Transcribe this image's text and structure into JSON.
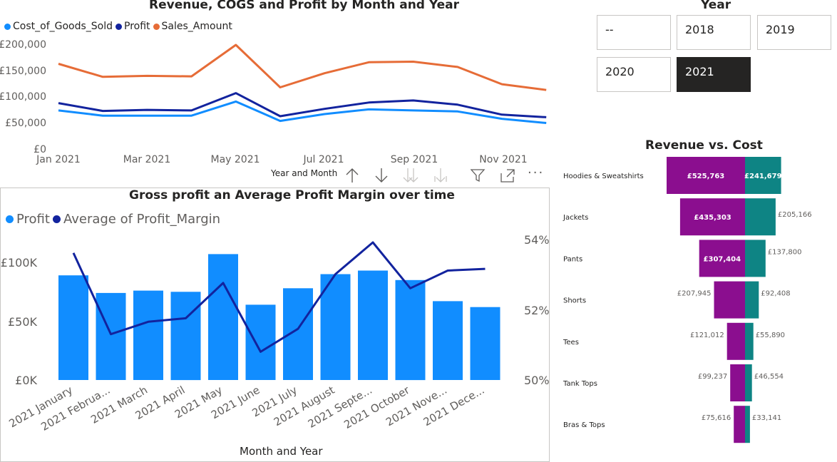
{
  "line_chart": {
    "title": "Revenue, COGS and Profit by Month and Year",
    "legend": [
      {
        "label": "Cost_of_Goods_Sold",
        "color": "#118DFF"
      },
      {
        "label": "Profit",
        "color": "#12239E"
      },
      {
        "label": "Sales_Amount",
        "color": "#E66C37"
      }
    ],
    "y_ticks": [
      "£200,000",
      "£150,000",
      "£100,000",
      "£50,000",
      "£0"
    ],
    "x_ticks": [
      "Jan 2021",
      "Mar 2021",
      "May 2021",
      "Jul 2021",
      "Sep 2021",
      "Nov 2021"
    ],
    "xlabel": "Year and Month"
  },
  "combo_chart": {
    "title": "Gross profit an Average Profit Margin over time",
    "legend": [
      {
        "label": "Profit",
        "color": "#118DFF"
      },
      {
        "label": "Average of Profit_Margin",
        "color": "#12239E"
      }
    ],
    "y_left_ticks": [
      "£100K",
      "£50K",
      "£0K"
    ],
    "y_right_ticks": [
      "54%",
      "52%",
      "50%"
    ],
    "x_ticks": [
      "2021 January",
      "2021 Februa...",
      "2021 March",
      "2021 April",
      "2021 May",
      "2021 June",
      "2021 July",
      "2021 August",
      "2021 Septe...",
      "2021 October",
      "2021 Nove...",
      "2021 Dece..."
    ],
    "xlabel": "Month and Year"
  },
  "slicer": {
    "title": "Year",
    "options": [
      {
        "label": "--",
        "selected": false
      },
      {
        "label": "2018",
        "selected": false
      },
      {
        "label": "2019",
        "selected": false
      },
      {
        "label": "2020",
        "selected": false
      },
      {
        "label": "2021",
        "selected": true
      }
    ]
  },
  "funnel": {
    "title": "Revenue vs. Cost",
    "revenue_color": "#8B0E8F",
    "cost_color": "#0E8484"
  },
  "chart_data": [
    {
      "type": "line",
      "title": "Revenue, COGS and Profit by Month and Year",
      "xlabel": "Year and Month",
      "ylabel": "",
      "x": [
        "Jan 2021",
        "Feb 2021",
        "Mar 2021",
        "Apr 2021",
        "May 2021",
        "Jun 2021",
        "Jul 2021",
        "Aug 2021",
        "Sep 2021",
        "Oct 2021",
        "Nov 2021",
        "Dec 2021"
      ],
      "ylim": [
        0,
        200000
      ],
      "series": [
        {
          "name": "Cost_of_Goods_Sold",
          "color": "#118DFF",
          "values": [
            75000,
            65000,
            65000,
            65000,
            92000,
            55000,
            68000,
            77000,
            75000,
            73000,
            59000,
            51000
          ]
        },
        {
          "name": "Profit",
          "color": "#12239E",
          "values": [
            89000,
            74000,
            76000,
            75000,
            108000,
            64000,
            78000,
            90000,
            94000,
            86000,
            67000,
            62000
          ]
        },
        {
          "name": "Sales_Amount",
          "color": "#E66C37",
          "values": [
            164000,
            139000,
            141000,
            140000,
            200000,
            119000,
            146000,
            167000,
            168000,
            158000,
            125000,
            114000
          ]
        }
      ]
    },
    {
      "type": "bar",
      "title": "Gross profit an Average Profit Margin over time",
      "xlabel": "Month and Year",
      "categories": [
        "2021 January",
        "2021 February",
        "2021 March",
        "2021 April",
        "2021 May",
        "2021 June",
        "2021 July",
        "2021 August",
        "2021 September",
        "2021 October",
        "2021 November",
        "2021 December"
      ],
      "ylim": [
        0,
        120000
      ],
      "y2lim": [
        50,
        55
      ],
      "series": [
        {
          "name": "Profit",
          "color": "#118DFF",
          "axis": "left",
          "values": [
            89000,
            74000,
            76000,
            75000,
            107000,
            64000,
            78000,
            90000,
            93000,
            85000,
            67000,
            62000
          ]
        },
        {
          "name": "Average of Profit_Margin",
          "color": "#12239E",
          "axis": "right",
          "kind": "line",
          "values": [
            53.6,
            51.3,
            51.65,
            51.75,
            52.75,
            50.8,
            51.45,
            53.0,
            53.9,
            52.6,
            53.1,
            53.15
          ]
        }
      ]
    },
    {
      "type": "bar",
      "title": "Revenue vs. Cost",
      "orientation": "horizontal-funnel",
      "categories": [
        "Hoodies & Sweatshirts",
        "Jackets",
        "Pants",
        "Shorts",
        "Tees",
        "Tank Tops",
        "Bras & Tops"
      ],
      "series": [
        {
          "name": "Revenue",
          "color": "#8B0E8F",
          "values": [
            525763,
            435303,
            307404,
            207945,
            121012,
            99237,
            75616
          ],
          "labels": [
            "£525,763",
            "£435,303",
            "£307,404",
            "£207,945",
            "£121,012",
            "£99,237",
            "£75,616"
          ]
        },
        {
          "name": "Cost",
          "color": "#0E8484",
          "values": [
            241679,
            205166,
            137800,
            92408,
            55890,
            46554,
            33141
          ],
          "labels": [
            "£241,679",
            "£205,166",
            "£137,800",
            "£92,408",
            "£55,890",
            "£46,554",
            "£33,141"
          ]
        }
      ]
    }
  ]
}
